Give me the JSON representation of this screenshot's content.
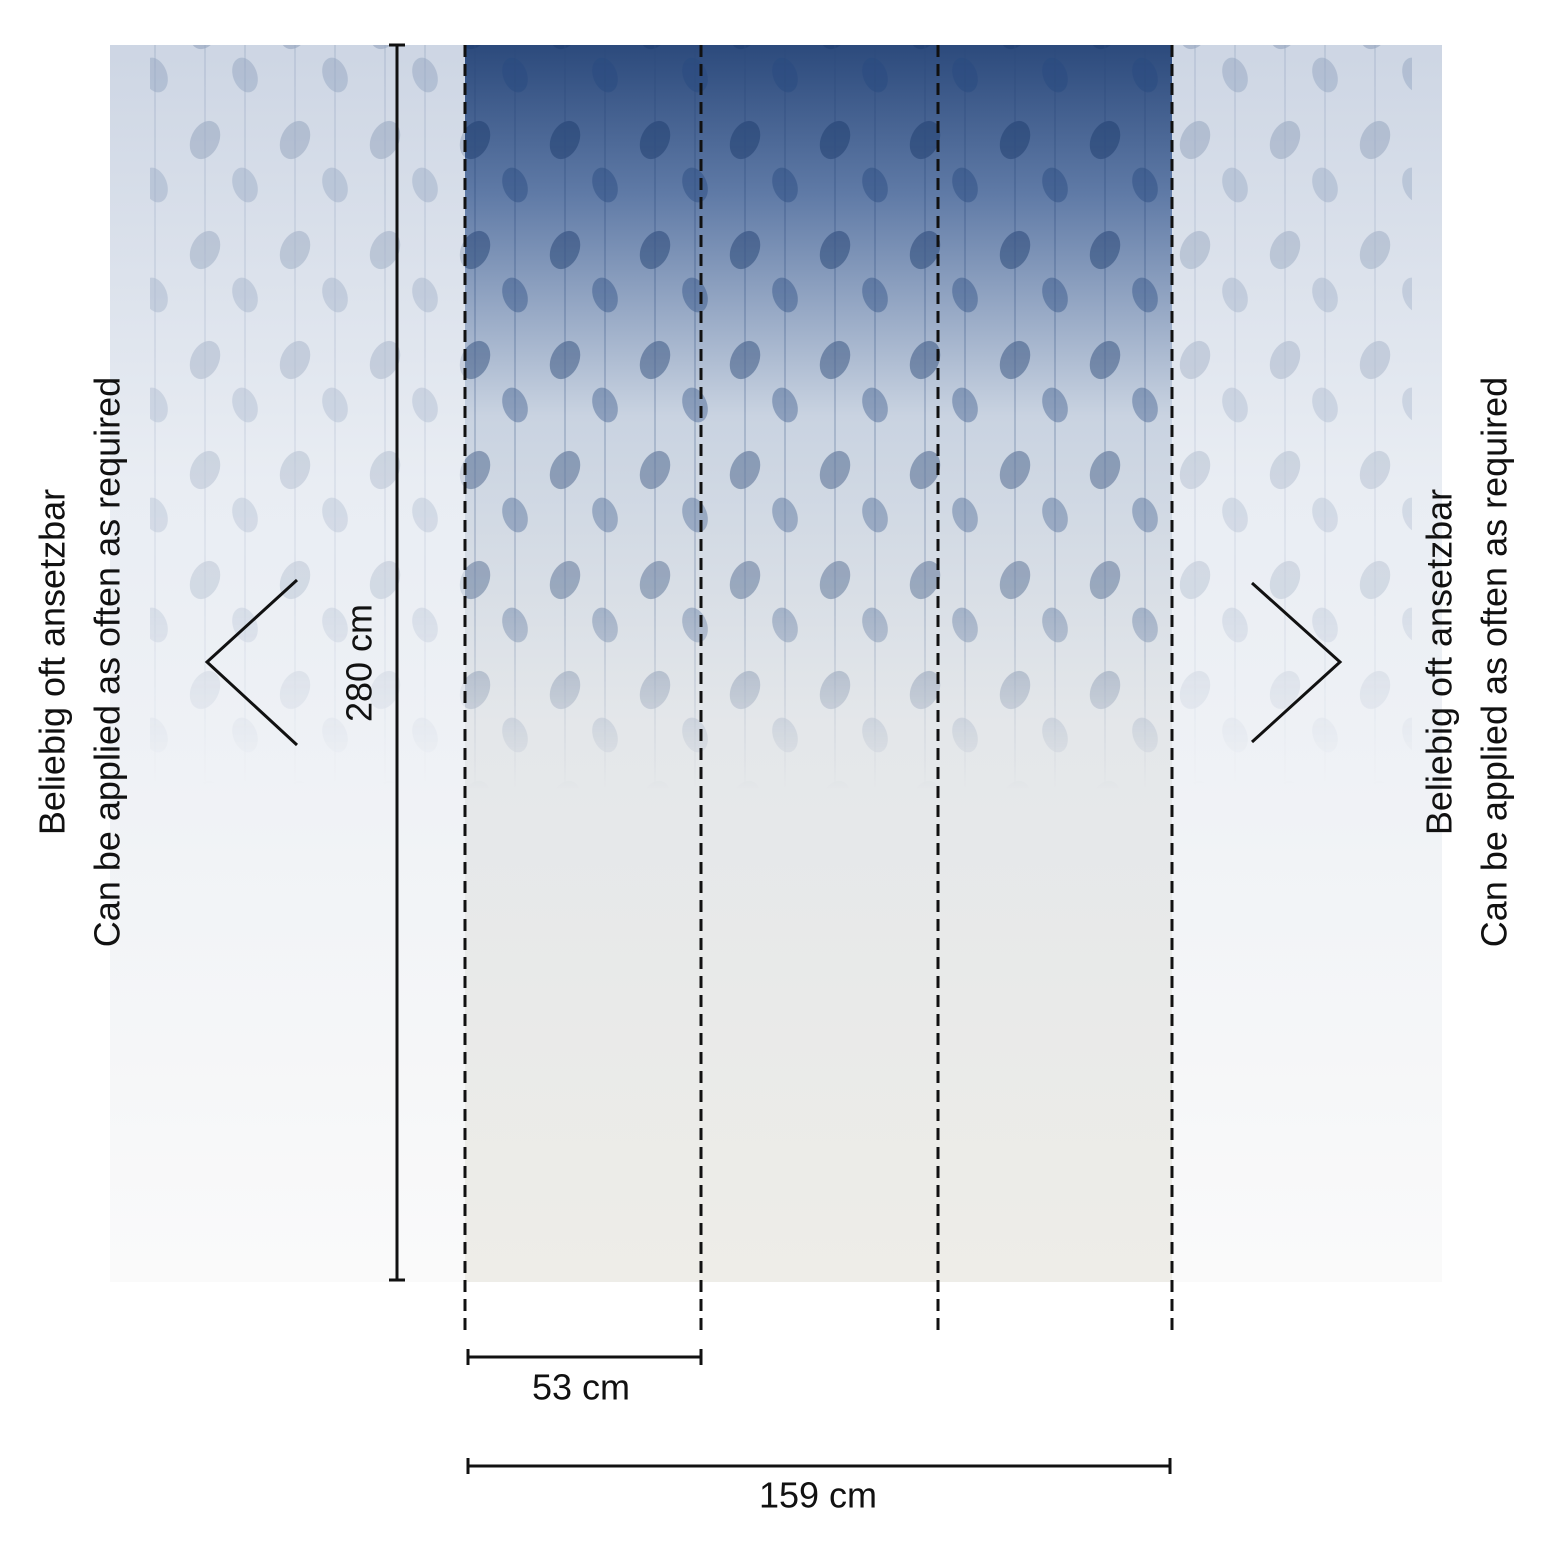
{
  "left_label": {
    "line1": "Beliebig oft ansetzbar",
    "line2": "Can be applied as often as required"
  },
  "right_label": {
    "line1": "Beliebig oft ansetzbar",
    "line2": "Can be applied as often as required"
  },
  "dimensions": {
    "height": "280 cm",
    "panel_width": "53 cm",
    "total_width": "159 cm"
  }
}
